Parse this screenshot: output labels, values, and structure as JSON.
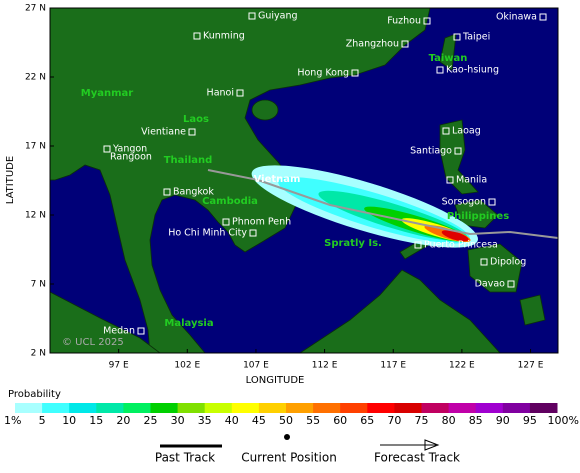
{
  "map": {
    "xlabel": "LONGITUDE",
    "ylabel": "LATITUDE",
    "xlim": [
      92,
      129
    ],
    "ylim": [
      2,
      27
    ],
    "xticks": [
      {
        "value": 97,
        "label": "97 E"
      },
      {
        "value": 102,
        "label": "102 E"
      },
      {
        "value": 107,
        "label": "107 E"
      },
      {
        "value": 112,
        "label": "112 E"
      },
      {
        "value": 117,
        "label": "117 E"
      },
      {
        "value": 122,
        "label": "122 E"
      },
      {
        "value": 127,
        "label": "127 E"
      }
    ],
    "yticks": [
      {
        "value": 2,
        "label": "2 N"
      },
      {
        "value": 7,
        "label": "7 N"
      },
      {
        "value": 12,
        "label": "12 N"
      },
      {
        "value": 17,
        "label": "17 N"
      },
      {
        "value": 22,
        "label": "22 N"
      },
      {
        "value": 27,
        "label": "27 N"
      }
    ],
    "cities": [
      "Guiyang",
      "Kunming",
      "Fuzhou",
      "Okinawa",
      "Zhangzhou",
      "Taipei",
      "Hong Kong",
      "Kao-hsiung",
      "Hanoi",
      "Vientiane",
      "Laoag",
      "Yangon",
      "Rangoon",
      "Santiago",
      "Bangkok",
      "Manila",
      "Sorsogon",
      "Phnom Penh",
      "Ho Chi Minh City",
      "Puerto Princesa",
      "Dipolog",
      "Davao",
      "Medan"
    ],
    "regions": [
      "Myanmar",
      "Laos",
      "Thailand",
      "Vietnam",
      "Cambodia",
      "Taiwan",
      "Philippines",
      "Spratly Is.",
      "Malaysia"
    ],
    "watermark": "© UCL 2025"
  },
  "colorbar": {
    "title": "Probability",
    "levels": [
      {
        "value": 1,
        "label": "1%"
      },
      5,
      10,
      15,
      20,
      25,
      30,
      35,
      40,
      45,
      50,
      55,
      60,
      65,
      70,
      75,
      80,
      85,
      90,
      95,
      {
        "value": 100,
        "label": "100%"
      }
    ],
    "colors": [
      "#a8ffff",
      "#40ffff",
      "#00e8e8",
      "#00e8a8",
      "#00f060",
      "#00d000",
      "#80e000",
      "#c8ff00",
      "#ffff00",
      "#ffd000",
      "#ffa000",
      "#ff7000",
      "#ff4000",
      "#ff0000",
      "#d80000",
      "#c00060",
      "#c000a8",
      "#a000d0",
      "#8000a0",
      "#600060"
    ]
  },
  "legend": [
    "Past Track",
    "Current Position",
    "Forecast Track"
  ]
}
